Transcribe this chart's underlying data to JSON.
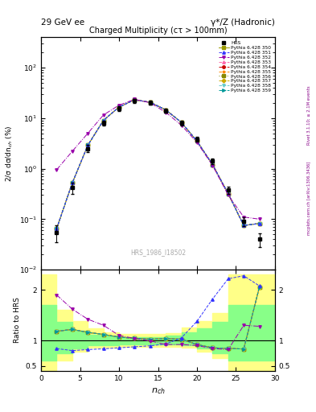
{
  "title_left": "29 GeV ee",
  "title_right": "γ*/Z (Hadronic)",
  "plot_title": "Charged Multiplicity",
  "plot_subtitle": "(cτ > 100mm)",
  "ylabel_main": "2/σ dσ/dn_{ch} (%)",
  "ylabel_ratio": "Ratio to HRS",
  "watermark": "HRS_1986_I18502",
  "right_label": "Rivet 3.1.10; ≥ 2.1M events",
  "right_label2": "mcplots.cern.ch [arXiv:1306.3436]",
  "hrs_x": [
    2,
    4,
    6,
    8,
    10,
    12,
    14,
    16,
    18,
    20,
    22,
    24,
    26,
    28
  ],
  "hrs_y": [
    0.055,
    0.42,
    2.5,
    8.0,
    15.5,
    22,
    20,
    14,
    8.0,
    3.8,
    1.4,
    0.38,
    0.09,
    0.04
  ],
  "hrs_yerr_lo": [
    0.02,
    0.1,
    0.4,
    0.8,
    1.5,
    1.8,
    1.8,
    1.2,
    0.8,
    0.4,
    0.18,
    0.06,
    0.018,
    0.012
  ],
  "hrs_yerr_hi": [
    0.02,
    0.1,
    0.4,
    0.8,
    1.5,
    1.8,
    1.8,
    1.2,
    0.8,
    0.4,
    0.18,
    0.06,
    0.018,
    0.012
  ],
  "common_x": [
    2,
    4,
    6,
    8,
    10,
    12,
    14,
    16,
    18,
    20,
    22,
    24,
    26,
    28
  ],
  "py350_y": [
    0.065,
    0.52,
    2.9,
    9.0,
    16.5,
    23,
    20.5,
    14.5,
    8.2,
    3.5,
    1.2,
    0.32,
    0.075,
    0.082
  ],
  "py351_y": [
    0.065,
    0.52,
    2.9,
    9.0,
    16.5,
    23,
    20.5,
    14.5,
    8.2,
    3.5,
    1.2,
    0.32,
    0.075,
    0.082
  ],
  "py352_y": [
    0.95,
    2.2,
    5.0,
    11.5,
    18,
    23.5,
    20,
    13,
    7.2,
    3.3,
    1.15,
    0.3,
    0.11,
    0.1
  ],
  "py353_y": [
    0.065,
    0.52,
    2.9,
    9.0,
    16.5,
    23,
    20.5,
    14.5,
    8.2,
    3.5,
    1.2,
    0.32,
    0.075,
    0.082
  ],
  "py354_y": [
    0.065,
    0.52,
    2.9,
    9.0,
    16.5,
    23,
    20.5,
    14.5,
    8.2,
    3.5,
    1.2,
    0.32,
    0.075,
    0.082
  ],
  "py355_y": [
    0.065,
    0.52,
    2.9,
    9.0,
    16.5,
    23,
    20.5,
    14.5,
    8.2,
    3.5,
    1.2,
    0.32,
    0.075,
    0.082
  ],
  "py356_y": [
    0.065,
    0.52,
    2.9,
    9.0,
    16.5,
    23,
    20.5,
    14.5,
    8.2,
    3.5,
    1.2,
    0.32,
    0.075,
    0.082
  ],
  "py357_y": [
    0.065,
    0.52,
    2.9,
    9.0,
    16.5,
    23,
    20.5,
    14.5,
    8.2,
    3.5,
    1.2,
    0.32,
    0.075,
    0.082
  ],
  "py358_y": [
    0.065,
    0.52,
    2.9,
    9.0,
    16.5,
    23,
    20.5,
    14.5,
    8.2,
    3.5,
    1.2,
    0.32,
    0.075,
    0.082
  ],
  "py359_y": [
    0.065,
    0.52,
    2.9,
    9.0,
    16.5,
    23,
    20.5,
    14.5,
    8.2,
    3.5,
    1.2,
    0.32,
    0.075,
    0.082
  ],
  "ratio_350_x": [
    2,
    4,
    6,
    8,
    10,
    12,
    14,
    16,
    18,
    20,
    22,
    24,
    26,
    28
  ],
  "ratio_350_y": [
    1.18,
    1.22,
    1.16,
    1.12,
    1.065,
    1.045,
    1.025,
    1.035,
    1.025,
    0.92,
    0.855,
    0.842,
    0.832,
    2.05
  ],
  "ratio_351_x": [
    2,
    4,
    6,
    8,
    10,
    12,
    14,
    16,
    18,
    20,
    22,
    24,
    26,
    28
  ],
  "ratio_351_y": [
    0.84,
    0.8,
    0.82,
    0.835,
    0.855,
    0.875,
    0.895,
    0.93,
    1.05,
    1.38,
    1.82,
    2.22,
    2.28,
    2.08
  ],
  "ratio_352_x": [
    2,
    4,
    6,
    8,
    10,
    12,
    14,
    16,
    18,
    20,
    22,
    24,
    26,
    28
  ],
  "ratio_352_y": [
    1.9,
    1.62,
    1.42,
    1.3,
    1.1,
    1.04,
    0.99,
    0.92,
    0.92,
    0.9,
    0.84,
    0.82,
    1.3,
    1.28
  ],
  "band_x": [
    0,
    2,
    4,
    6,
    8,
    10,
    12,
    14,
    16,
    18,
    20,
    22,
    24,
    26,
    28,
    30
  ],
  "band_yellow_lo": [
    0.4,
    0.4,
    0.6,
    0.78,
    0.86,
    0.86,
    0.88,
    0.88,
    0.88,
    0.88,
    0.86,
    0.78,
    0.65,
    0.4,
    0.4,
    0.4
  ],
  "band_yellow_hi": [
    2.3,
    2.3,
    1.6,
    1.38,
    1.24,
    1.16,
    1.13,
    1.13,
    1.13,
    1.15,
    1.26,
    1.38,
    1.55,
    2.3,
    2.3,
    2.3
  ],
  "band_green_lo": [
    0.6,
    0.6,
    0.74,
    0.84,
    0.9,
    0.9,
    0.92,
    0.92,
    0.92,
    0.92,
    0.9,
    0.84,
    0.74,
    0.6,
    0.6,
    0.6
  ],
  "band_green_hi": [
    1.7,
    1.7,
    1.36,
    1.2,
    1.12,
    1.09,
    1.07,
    1.07,
    1.07,
    1.09,
    1.16,
    1.24,
    1.36,
    1.7,
    1.7,
    1.7
  ],
  "color_350": "#999900",
  "color_351": "#3333ff",
  "color_352": "#9900aa",
  "color_353": "#ff66aa",
  "color_354": "#cc0000",
  "color_355": "#ff8800",
  "color_356": "#888800",
  "color_357": "#ccaa00",
  "color_358": "#66cccc",
  "color_359": "#009999"
}
